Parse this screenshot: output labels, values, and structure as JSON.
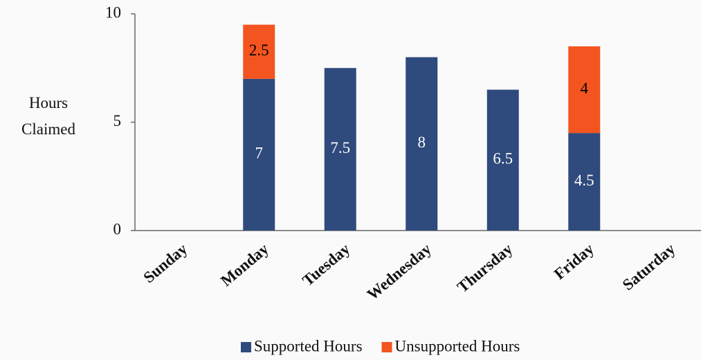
{
  "chart_data": {
    "type": "stacked_bar",
    "y_label": "Hours Claimed",
    "categories": [
      "Sunday",
      "Monday",
      "Tuesday",
      "Wednesday",
      "Thursday",
      "Friday",
      "Saturday"
    ],
    "series": [
      {
        "name": "Supported Hours",
        "color": "#2f4a7c",
        "label_color": "#ffffff",
        "values": [
          null,
          7,
          7.5,
          8,
          6.5,
          4.5,
          null
        ]
      },
      {
        "name": "Unsupported Hours",
        "color": "#f4541f",
        "label_color": "#000000",
        "values": [
          null,
          2.5,
          null,
          null,
          null,
          4,
          null
        ]
      }
    ],
    "ylim": [
      0,
      10
    ],
    "yticks": [
      0,
      5,
      10
    ],
    "grid": false,
    "legend": "bottom"
  }
}
